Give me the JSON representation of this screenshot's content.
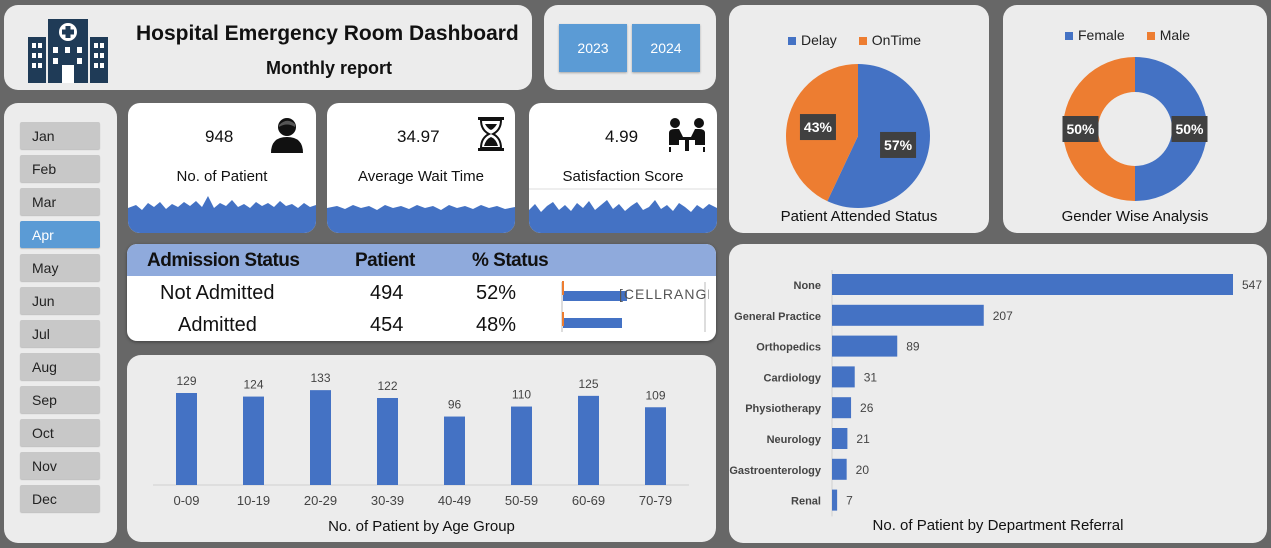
{
  "header": {
    "title": "Hospital Emergency Room Dashboard",
    "subtitle": "Monthly report"
  },
  "years": [
    "2023",
    "2024"
  ],
  "months": [
    "Jan",
    "Feb",
    "Mar",
    "Apr",
    "May",
    "Jun",
    "Jul",
    "Aug",
    "Sep",
    "Oct",
    "Nov",
    "Dec"
  ],
  "selected_month": "Apr",
  "kpis": [
    {
      "value": "948",
      "label": "No. of Patient",
      "icon": "patient-icon"
    },
    {
      "value": "34.97",
      "label": "Average Wait Time",
      "icon": "hourglass-icon"
    },
    {
      "value": "4.99",
      "label": "Satisfaction Score",
      "icon": "consultation-icon"
    }
  ],
  "admission": {
    "headers": [
      "Admission Status",
      "Patient",
      "% Status"
    ],
    "rows": [
      {
        "status": "Not Admitted",
        "patients": "494",
        "pct": "52%",
        "fraction": 0.52,
        "extra": "[CELLRANGE]"
      },
      {
        "status": "Admitted",
        "patients": "454",
        "pct": "48%",
        "fraction": 0.48,
        "extra": ""
      }
    ]
  },
  "colors": {
    "blue": "#4472c4",
    "orange": "#ed7d31",
    "year_btn": "#5b9bd5",
    "table_head": "#8faadc"
  },
  "chart_data": [
    {
      "type": "bar",
      "title": "No. of Patient by Age Group",
      "categories": [
        "0-09",
        "10-19",
        "20-29",
        "30-39",
        "40-49",
        "50-59",
        "60-69",
        "70-79"
      ],
      "values": [
        129,
        124,
        133,
        122,
        96,
        110,
        125,
        109
      ]
    },
    {
      "type": "bar",
      "orientation": "horizontal",
      "title": "No. of Patient by Department Referral",
      "categories": [
        "None",
        "General Practice",
        "Orthopedics",
        "Cardiology",
        "Physiotherapy",
        "Neurology",
        "Gastroenterology",
        "Renal"
      ],
      "values": [
        547,
        207,
        89,
        31,
        26,
        21,
        20,
        7
      ]
    },
    {
      "type": "pie",
      "title": "Patient Attended Status",
      "labels": [
        "Delay",
        "OnTime"
      ],
      "values": [
        57,
        43
      ],
      "value_labels": [
        "57%",
        "43%"
      ],
      "legend": "top"
    },
    {
      "type": "pie",
      "donut": true,
      "title": "Gender Wise Analysis",
      "labels": [
        "Female",
        "Male"
      ],
      "values": [
        50,
        50
      ],
      "value_labels": [
        "50%",
        "50%"
      ],
      "legend": "top"
    }
  ]
}
